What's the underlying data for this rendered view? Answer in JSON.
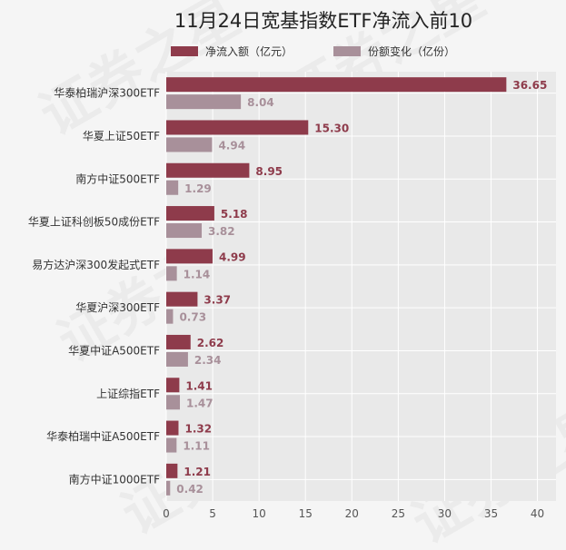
{
  "chart_data": {
    "type": "bar",
    "orientation": "horizontal",
    "title": "11月24日宽基指数ETF净流入前10",
    "categories": [
      "华泰柏瑞沪深300ETF",
      "华夏上证50ETF",
      "南方中证500ETF",
      "华夏上证科创板50成份ETF",
      "易方达沪深300发起式ETF",
      "华夏沪深300ETF",
      "华夏中证A500ETF",
      "上证综指ETF",
      "华泰柏瑞中证A500ETF",
      "南方中证1000ETF"
    ],
    "series": [
      {
        "name": "净流入额（亿元）",
        "color": "#8e3b4b",
        "values": [
          36.65,
          15.3,
          8.95,
          5.18,
          4.99,
          3.37,
          2.62,
          1.41,
          1.32,
          1.21
        ],
        "labels": [
          "36.65",
          "15.30",
          "8.95",
          "5.18",
          "4.99",
          "3.37",
          "2.62",
          "1.41",
          "1.32",
          "1.21"
        ]
      },
      {
        "name": "份额变化（亿份）",
        "color": "#a8909a",
        "values": [
          8.04,
          4.94,
          1.29,
          3.82,
          1.14,
          0.73,
          2.34,
          1.47,
          1.11,
          0.42
        ],
        "labels": [
          "8.04",
          "4.94",
          "1.29",
          "3.82",
          "1.14",
          "0.73",
          "2.34",
          "1.47",
          "1.11",
          "0.42"
        ]
      }
    ],
    "xlim": [
      0,
      42
    ],
    "xticks": [
      "0",
      "5",
      "10",
      "15",
      "20",
      "25",
      "30",
      "35",
      "40"
    ],
    "xtick_values": [
      0,
      5,
      10,
      15,
      20,
      25,
      30,
      35,
      40
    ],
    "grid": true,
    "legend_position": "top-center",
    "plot_background": "#e9e9e9",
    "watermark": "证券之星"
  }
}
